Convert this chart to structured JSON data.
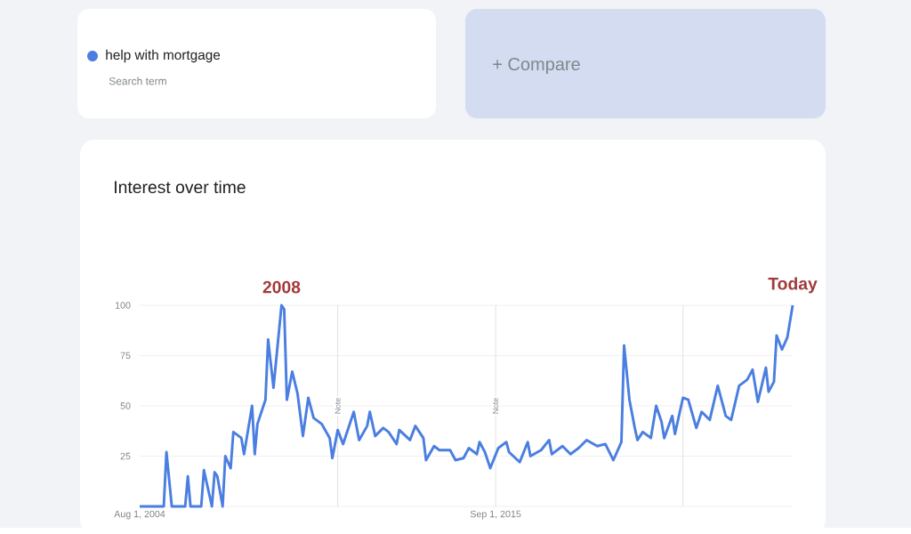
{
  "chart_data": {
    "type": "line",
    "title": "Interest over time",
    "annotations": [
      "Search term",
      "+ Compare",
      {
        "text": "2008",
        "x": "2009-01",
        "y": 100
      },
      {
        "text": "Today",
        "x": "2024-12",
        "y": 100
      }
    ],
    "x": [
      "2004-08",
      "2005-05",
      "2005-06",
      "2005-08",
      "2006-01",
      "2006-02",
      "2006-03",
      "2006-07",
      "2006-08",
      "2006-11",
      "2006-12",
      "2007-01",
      "2007-03",
      "2007-04",
      "2007-06",
      "2007-07",
      "2007-10",
      "2007-11",
      "2008-02",
      "2008-03",
      "2008-04",
      "2008-07",
      "2008-08",
      "2008-10",
      "2009-01",
      "2009-02",
      "2009-03",
      "2009-05",
      "2009-07",
      "2009-09",
      "2009-11",
      "2010-01",
      "2010-04",
      "2010-07",
      "2010-08",
      "2010-10",
      "2010-12",
      "2011-04",
      "2011-06",
      "2011-09",
      "2011-10",
      "2011-12",
      "2012-03",
      "2012-05",
      "2012-08",
      "2012-09",
      "2013-01",
      "2013-03",
      "2013-06",
      "2013-07",
      "2013-10",
      "2013-12",
      "2014-04",
      "2014-06",
      "2014-09",
      "2014-11",
      "2015-02",
      "2015-03",
      "2015-05",
      "2015-07",
      "2015-10",
      "2016-01",
      "2016-02",
      "2016-06",
      "2016-09",
      "2016-10",
      "2017-02",
      "2017-05",
      "2017-06",
      "2017-10",
      "2018-01",
      "2018-04",
      "2018-07",
      "2018-11",
      "2019-02",
      "2019-05",
      "2019-08",
      "2019-09",
      "2019-11",
      "2020-01",
      "2020-02",
      "2020-04",
      "2020-07",
      "2020-09",
      "2020-11",
      "2020-12",
      "2021-03",
      "2021-04",
      "2021-07",
      "2021-09",
      "2021-12",
      "2022-02",
      "2022-05",
      "2022-08",
      "2022-11",
      "2023-01",
      "2023-04",
      "2023-07",
      "2023-09",
      "2023-11",
      "2024-02",
      "2024-03",
      "2024-05",
      "2024-06",
      "2024-08",
      "2024-10",
      "2024-12"
    ],
    "series": [
      {
        "name": "help with mortgage",
        "color": "#4a7ee0",
        "values": [
          0,
          0,
          27,
          0,
          0,
          15,
          0,
          0,
          18,
          0,
          17,
          15,
          0,
          25,
          19,
          37,
          34,
          26,
          50,
          26,
          41,
          53,
          83,
          59,
          100,
          98,
          53,
          67,
          56,
          35,
          54,
          44,
          41,
          34,
          24,
          38,
          31,
          47,
          33,
          40,
          47,
          35,
          39,
          37,
          31,
          38,
          33,
          40,
          34,
          23,
          30,
          28,
          28,
          23,
          24,
          29,
          26,
          32,
          27,
          19,
          29,
          32,
          27,
          22,
          32,
          25,
          28,
          33,
          26,
          30,
          26,
          29,
          33,
          30,
          31,
          23,
          32,
          80,
          53,
          39,
          33,
          37,
          34,
          50,
          42,
          34,
          45,
          36,
          54,
          53,
          39,
          47,
          43,
          60,
          45,
          43,
          60,
          63,
          68,
          52,
          69,
          57,
          62,
          85,
          78,
          84,
          100
        ]
      }
    ],
    "xlim": [
      "2004-08",
      "2024-12"
    ],
    "xticks": [
      {
        "value": "2004-08-01",
        "label": "Aug 1, 2004"
      },
      {
        "value": "2015-09-01",
        "label": "Sep 1, 2015"
      }
    ],
    "ylim": [
      0,
      100
    ],
    "yticks": [
      25,
      50,
      75,
      100
    ],
    "ref_lines": [
      {
        "axis": "x",
        "value": "2010-10",
        "label": "Note",
        "color": "#c8c8c8"
      },
      {
        "axis": "x",
        "value": "2015-09-01",
        "label": "Note",
        "color": "#c8c8c8"
      },
      {
        "axis": "x",
        "value": "2021-07",
        "color": "#c8c8c8"
      }
    ],
    "grid": "y",
    "legend": "top left",
    "marker": "none",
    "line_style": "solid"
  }
}
